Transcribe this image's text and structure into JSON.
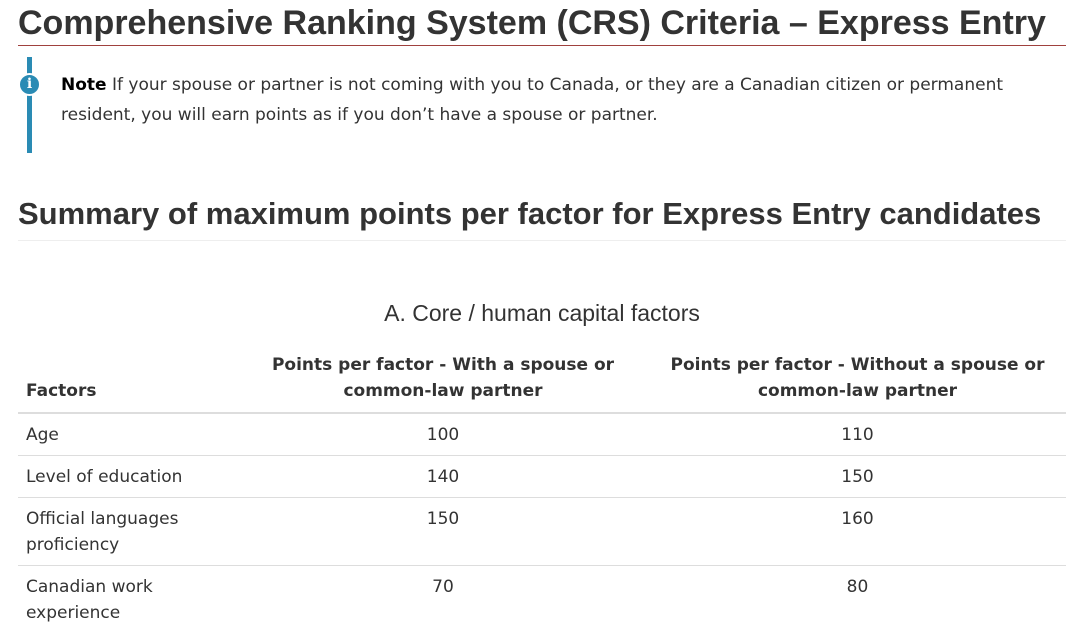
{
  "page": {
    "title": "Comprehensive Ranking System (CRS) Criteria – Express Entry"
  },
  "note": {
    "icon": "info-circle-icon",
    "label": "Note",
    "text": "If your spouse or partner is not coming with you to Canada, or they are a Canadian citizen or permanent resident, you will earn points as if you don’t have a spouse or partner."
  },
  "summary": {
    "title": "Summary of maximum points per factor for Express Entry candidates"
  },
  "table": {
    "caption": "A. Core / human capital factors",
    "headers": [
      "Factors",
      "Points per factor - With a spouse or common-law partner",
      "Points per factor - Without a spouse or common-law partner"
    ],
    "rows": [
      {
        "factor": "Age",
        "with_spouse": "100",
        "without_spouse": "110"
      },
      {
        "factor": "Level of education",
        "with_spouse": "140",
        "without_spouse": "150"
      },
      {
        "factor": "Official languages proficiency",
        "with_spouse": "150",
        "without_spouse": "160"
      },
      {
        "factor": "Canadian work experience",
        "with_spouse": "70",
        "without_spouse": "80"
      }
    ]
  },
  "colors": {
    "title_rule": "#a0413e",
    "note_accent": "#2a8bb4",
    "text": "#333333"
  }
}
